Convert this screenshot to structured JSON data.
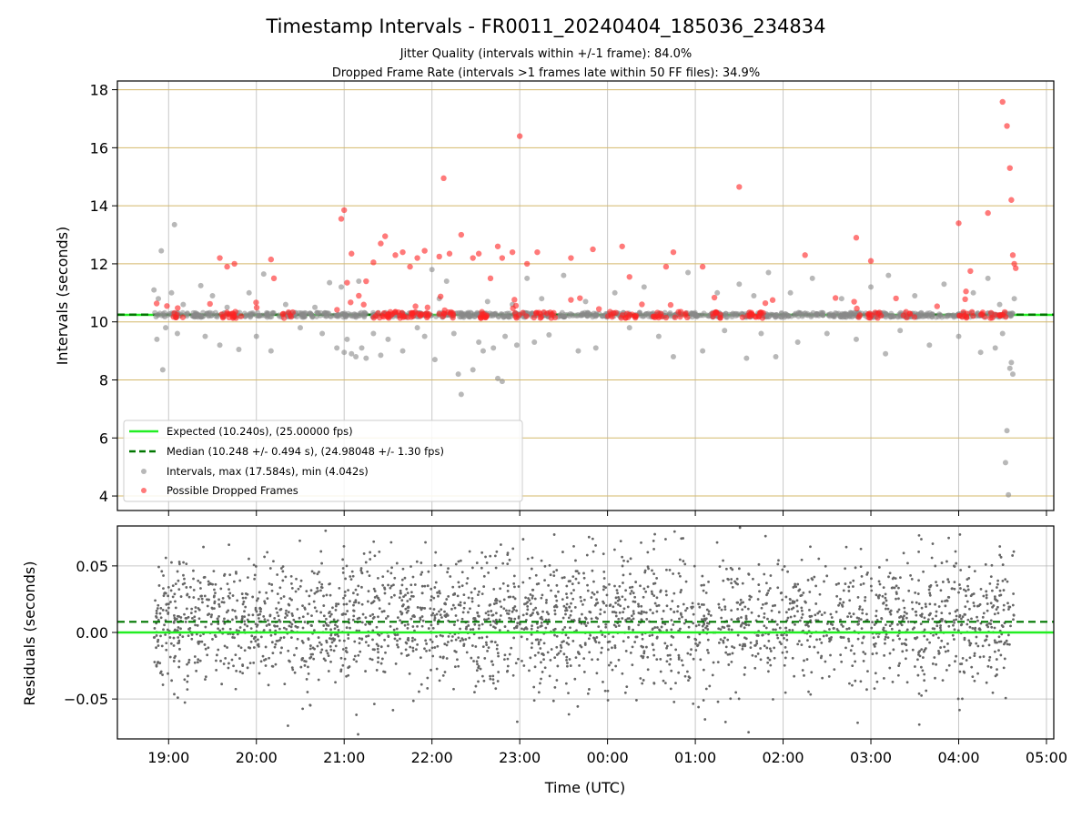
{
  "chart_data": [
    {
      "type": "scatter",
      "title": "Timestamp Intervals - FR0011_20240404_185036_234834",
      "subtitle_lines": [
        "Jitter Quality (intervals within +/-1 frame): 84.0%",
        "Dropped Frame Rate (intervals >1 frames late within 50 FF files): 34.9%"
      ],
      "ylabel": "Intervals (seconds)",
      "x_range": [
        "2024-04-04T18:25",
        "2024-04-05T05:05"
      ],
      "ylim": [
        3.5,
        18.3
      ],
      "yticks": [
        4,
        6,
        8,
        10,
        12,
        14,
        16,
        18
      ],
      "ytick_labels": [
        "4",
        "6",
        "8",
        "10",
        "12",
        "14",
        "16",
        "18"
      ],
      "grid": true,
      "legend_position": "lower-left",
      "series": [
        {
          "name": "Expected (10.240s), (25.00000 fps)",
          "kind": "hline",
          "y": 10.24,
          "color": "#22ee22",
          "style": "solid"
        },
        {
          "name": "Median (10.248 +/- 0.494 s), (24.98048 +/- 1.30 fps)",
          "kind": "hline",
          "y": 10.248,
          "color": "#007700",
          "style": "dashed"
        },
        {
          "name": "Intervals, max (17.584s), min (4.042s)",
          "kind": "scatter",
          "color": "#888888",
          "points": [
            [
              "18:50",
              11.1
            ],
            [
              "18:52",
              9.4
            ],
            [
              "18:53",
              10.8
            ],
            [
              "18:55",
              12.45
            ],
            [
              "18:56",
              8.35
            ],
            [
              "18:58",
              9.8
            ],
            [
              "19:02",
              11.0
            ],
            [
              "19:04",
              13.35
            ],
            [
              "19:06",
              9.6
            ],
            [
              "19:10",
              10.6
            ],
            [
              "19:22",
              11.25
            ],
            [
              "19:25",
              9.5
            ],
            [
              "19:30",
              10.9
            ],
            [
              "19:35",
              9.2
            ],
            [
              "19:40",
              10.5
            ],
            [
              "19:48",
              9.05
            ],
            [
              "19:55",
              11.0
            ],
            [
              "20:00",
              9.5
            ],
            [
              "20:05",
              11.65
            ],
            [
              "20:10",
              9.0
            ],
            [
              "20:20",
              10.6
            ],
            [
              "20:30",
              9.8
            ],
            [
              "20:40",
              10.5
            ],
            [
              "20:45",
              9.6
            ],
            [
              "20:50",
              11.35
            ],
            [
              "20:55",
              9.1
            ],
            [
              "20:58",
              11.2
            ],
            [
              "21:00",
              8.95
            ],
            [
              "21:02",
              9.4
            ],
            [
              "21:05",
              8.9
            ],
            [
              "21:08",
              8.8
            ],
            [
              "21:10",
              11.4
            ],
            [
              "21:12",
              9.1
            ],
            [
              "21:15",
              8.75
            ],
            [
              "21:20",
              9.6
            ],
            [
              "21:25",
              8.85
            ],
            [
              "21:30",
              9.4
            ],
            [
              "21:40",
              9.0
            ],
            [
              "21:50",
              9.8
            ],
            [
              "21:55",
              9.5
            ],
            [
              "22:00",
              11.8
            ],
            [
              "22:02",
              8.7
            ],
            [
              "22:05",
              10.8
            ],
            [
              "22:10",
              11.4
            ],
            [
              "22:15",
              9.6
            ],
            [
              "22:18",
              8.2
            ],
            [
              "22:20",
              7.5
            ],
            [
              "22:28",
              8.35
            ],
            [
              "22:32",
              9.3
            ],
            [
              "22:35",
              9.0
            ],
            [
              "22:38",
              10.7
            ],
            [
              "22:42",
              9.1
            ],
            [
              "22:45",
              8.05
            ],
            [
              "22:48",
              7.95
            ],
            [
              "22:50",
              9.5
            ],
            [
              "22:55",
              10.6
            ],
            [
              "22:58",
              9.2
            ],
            [
              "23:05",
              11.5
            ],
            [
              "23:10",
              9.3
            ],
            [
              "23:15",
              10.8
            ],
            [
              "23:20",
              9.55
            ],
            [
              "23:30",
              11.6
            ],
            [
              "23:40",
              9.0
            ],
            [
              "23:45",
              10.7
            ],
            [
              "23:52",
              9.1
            ],
            [
              "00:05",
              11.0
            ],
            [
              "00:15",
              9.8
            ],
            [
              "00:25",
              11.2
            ],
            [
              "00:35",
              9.5
            ],
            [
              "00:45",
              8.8
            ],
            [
              "00:55",
              11.7
            ],
            [
              "01:05",
              9.0
            ],
            [
              "01:15",
              11.0
            ],
            [
              "01:20",
              9.7
            ],
            [
              "01:30",
              11.3
            ],
            [
              "01:35",
              8.75
            ],
            [
              "01:40",
              10.9
            ],
            [
              "01:45",
              9.6
            ],
            [
              "01:50",
              11.7
            ],
            [
              "01:55",
              8.8
            ],
            [
              "02:05",
              11.0
            ],
            [
              "02:10",
              9.3
            ],
            [
              "02:20",
              11.5
            ],
            [
              "02:30",
              9.6
            ],
            [
              "02:40",
              10.8
            ],
            [
              "02:50",
              9.4
            ],
            [
              "03:00",
              11.2
            ],
            [
              "03:10",
              8.9
            ],
            [
              "03:12",
              11.6
            ],
            [
              "03:20",
              9.7
            ],
            [
              "03:30",
              10.9
            ],
            [
              "03:40",
              9.2
            ],
            [
              "03:50",
              11.3
            ],
            [
              "04:00",
              9.5
            ],
            [
              "04:10",
              11.0
            ],
            [
              "04:15",
              8.95
            ],
            [
              "04:20",
              11.5
            ],
            [
              "04:25",
              9.1
            ],
            [
              "04:28",
              10.6
            ],
            [
              "04:30",
              9.6
            ],
            [
              "04:32",
              5.15
            ],
            [
              "04:33",
              6.25
            ],
            [
              "04:34",
              4.04
            ],
            [
              "04:35",
              8.4
            ],
            [
              "04:36",
              8.6
            ],
            [
              "04:37",
              8.2
            ],
            [
              "04:38",
              10.8
            ]
          ]
        },
        {
          "name": "Possible Dropped Frames",
          "kind": "scatter",
          "color": "#ff2222",
          "points": [
            [
              "19:35",
              12.2
            ],
            [
              "19:40",
              11.9
            ],
            [
              "19:45",
              12.0
            ],
            [
              "20:10",
              12.15
            ],
            [
              "20:12",
              11.5
            ],
            [
              "20:58",
              13.55
            ],
            [
              "21:00",
              13.85
            ],
            [
              "21:02",
              11.35
            ],
            [
              "21:05",
              12.35
            ],
            [
              "21:10",
              10.9
            ],
            [
              "21:15",
              11.4
            ],
            [
              "21:20",
              12.05
            ],
            [
              "21:25",
              12.7
            ],
            [
              "21:28",
              12.95
            ],
            [
              "21:35",
              12.3
            ],
            [
              "21:40",
              12.4
            ],
            [
              "21:45",
              11.9
            ],
            [
              "21:50",
              12.2
            ],
            [
              "21:55",
              12.45
            ],
            [
              "22:05",
              12.25
            ],
            [
              "22:08",
              14.95
            ],
            [
              "22:12",
              12.35
            ],
            [
              "22:20",
              13.0
            ],
            [
              "22:28",
              12.2
            ],
            [
              "22:32",
              12.35
            ],
            [
              "22:40",
              11.5
            ],
            [
              "22:45",
              12.6
            ],
            [
              "22:48",
              12.2
            ],
            [
              "22:55",
              12.4
            ],
            [
              "23:00",
              16.4
            ],
            [
              "23:05",
              12.0
            ],
            [
              "23:12",
              12.4
            ],
            [
              "23:35",
              12.2
            ],
            [
              "23:50",
              12.5
            ],
            [
              "00:10",
              12.6
            ],
            [
              "00:15",
              11.55
            ],
            [
              "00:40",
              11.9
            ],
            [
              "00:45",
              12.4
            ],
            [
              "01:05",
              11.9
            ],
            [
              "01:30",
              14.65
            ],
            [
              "02:15",
              12.3
            ],
            [
              "02:50",
              12.9
            ],
            [
              "03:00",
              12.1
            ],
            [
              "04:00",
              13.4
            ],
            [
              "04:05",
              11.05
            ],
            [
              "04:08",
              11.75
            ],
            [
              "04:20",
              13.75
            ],
            [
              "04:30",
              17.58
            ],
            [
              "04:33",
              16.75
            ],
            [
              "04:35",
              15.3
            ],
            [
              "04:36",
              14.2
            ],
            [
              "04:37",
              12.3
            ],
            [
              "04:38",
              12.0
            ],
            [
              "04:39",
              11.85
            ]
          ]
        }
      ]
    },
    {
      "type": "scatter",
      "ylabel": "Residuals (seconds)",
      "xlabel": "Time (UTC)",
      "x_range": [
        "2024-04-04T18:25",
        "2024-04-05T05:05"
      ],
      "xticks": [
        "19:00",
        "20:00",
        "21:00",
        "22:00",
        "23:00",
        "00:00",
        "01:00",
        "02:00",
        "03:00",
        "04:00",
        "05:00"
      ],
      "ylim": [
        -0.08,
        0.08
      ],
      "yticks": [
        -0.05,
        0,
        0.05
      ],
      "ytick_labels": [
        "−0.05",
        "0.00",
        "0.05"
      ],
      "grid": true,
      "series": [
        {
          "kind": "hline",
          "y": 0.0,
          "color": "#22ee22",
          "style": "solid"
        },
        {
          "kind": "hline",
          "y": 0.008,
          "color": "#007700",
          "style": "dashed"
        },
        {
          "kind": "scatter",
          "color": "#666666",
          "time_start": "18:50",
          "time_end": "04:38",
          "count": 2700,
          "mean": 0.008,
          "std": 0.025,
          "seed": 17
        }
      ]
    }
  ]
}
